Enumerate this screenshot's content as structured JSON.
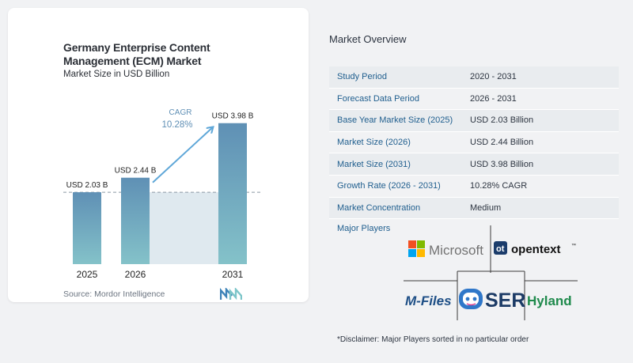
{
  "chart": {
    "title_line1": "Germany Enterprise Content",
    "title_line2": "Management (ECM) Market",
    "subtitle": "Market Size in USD Billion",
    "source": "Source: Mordor Intelligence"
  },
  "chart_data": {
    "type": "bar",
    "title": "Germany Enterprise Content Management (ECM) Market",
    "subtitle": "Market Size in USD Billion",
    "categories": [
      "2025",
      "2026",
      "2031"
    ],
    "values": [
      2.03,
      2.44,
      3.98
    ],
    "value_labels": [
      "USD 2.03 B",
      "USD 2.44 B",
      "USD 3.98 B"
    ],
    "cagr_label": "CAGR",
    "cagr_value": "10.28%",
    "ylim": [
      0,
      4.8
    ],
    "grid": false,
    "colors": {
      "bar_top": "#5f90b5",
      "bar_bottom": "#84c2c9",
      "band": "#dfe9ef",
      "arrow": "#5fa7d8"
    }
  },
  "overview": {
    "title": "Market Overview",
    "rows": [
      {
        "key": "Study Period",
        "value": "2020 - 2031"
      },
      {
        "key": "Forecast Data Period",
        "value": "2026 - 2031"
      },
      {
        "key": "Base Year Market Size (2025)",
        "value": "USD 2.03 Billion"
      },
      {
        "key": "Market Size (2026)",
        "value": "USD 2.44 Billion"
      },
      {
        "key": "Market Size (2031)",
        "value": "USD 3.98 Billion"
      },
      {
        "key": "Growth Rate (2026 - 2031)",
        "value": "10.28% CAGR"
      },
      {
        "key": "Market Concentration",
        "value": "Medium"
      }
    ],
    "players_label": "Major Players",
    "disclaimer": "*Disclaimer: Major Players sorted in no particular order"
  },
  "players": [
    {
      "name": "Microsoft",
      "icon": "microsoft-logo-icon"
    },
    {
      "name": "opentext",
      "icon": "opentext-logo-icon"
    },
    {
      "name": "M-Files",
      "icon": "m-files-logo-icon"
    },
    {
      "name": "SER",
      "icon": "ser-logo-icon"
    },
    {
      "name": "Hyland",
      "icon": "hyland-logo-icon"
    }
  ]
}
